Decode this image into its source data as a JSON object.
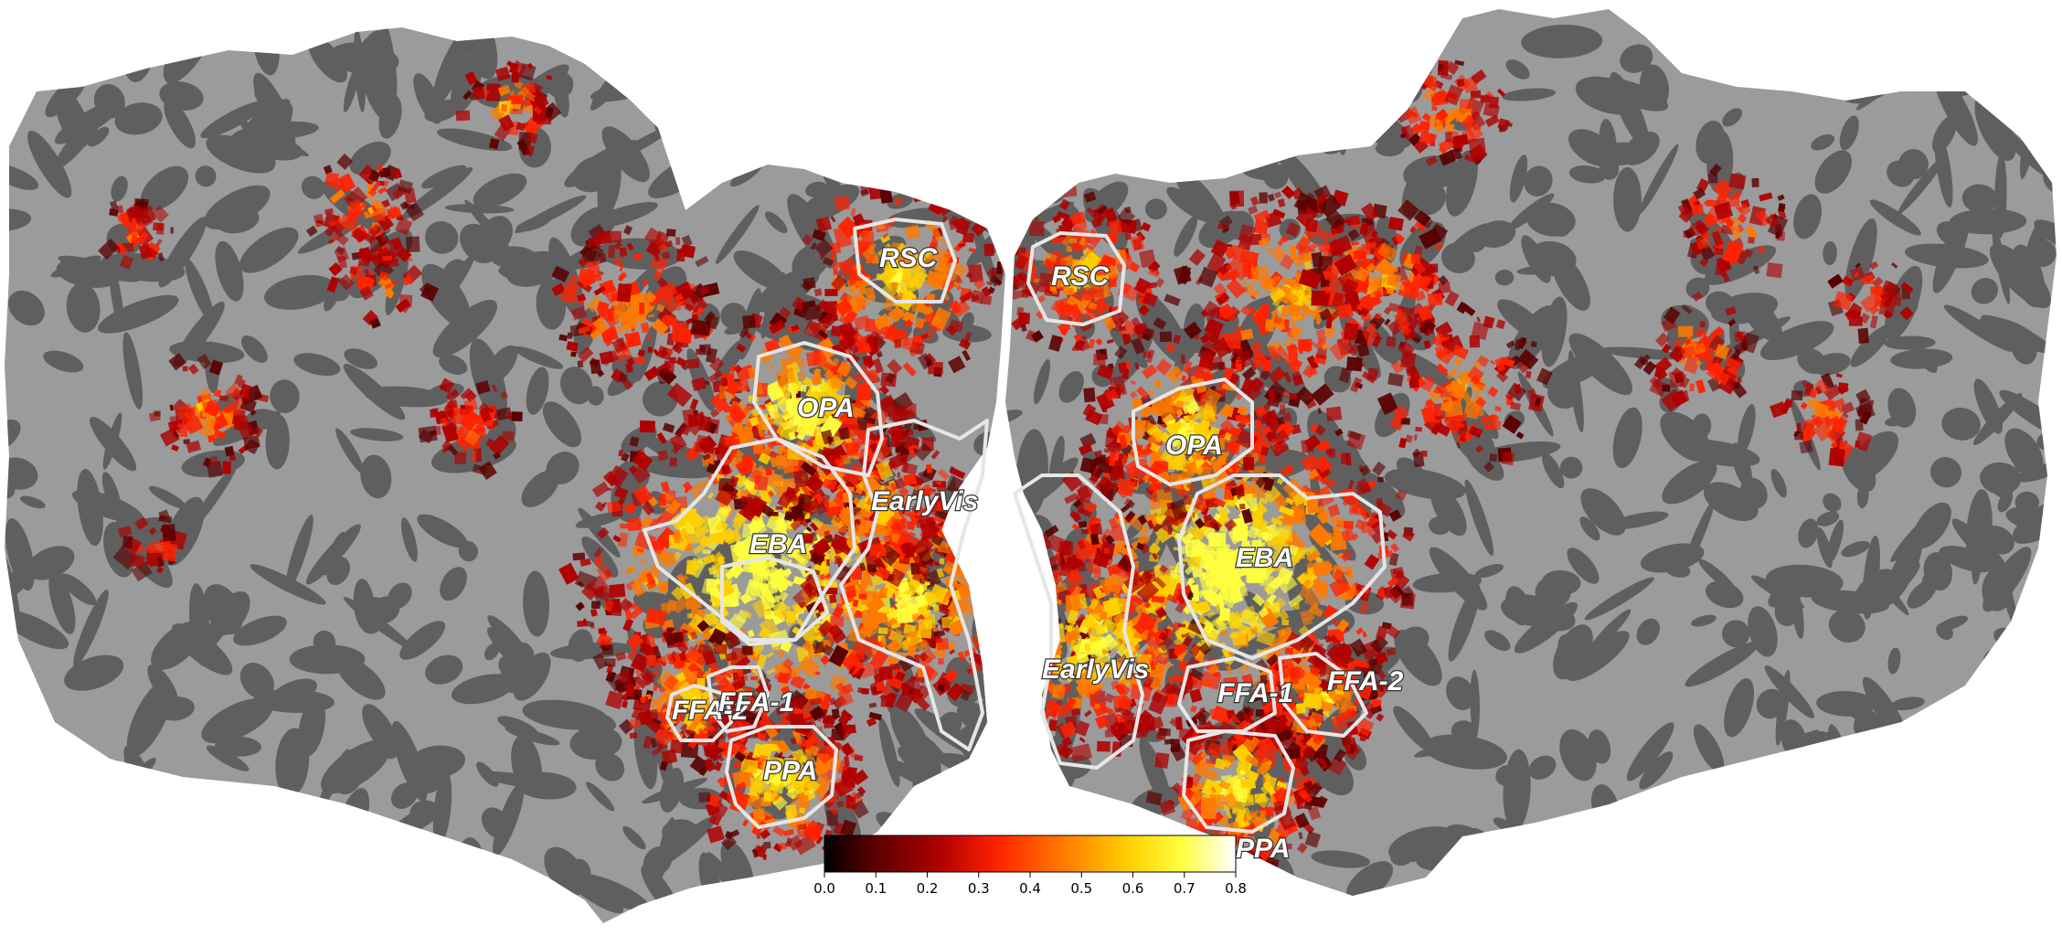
{
  "colors": {
    "background": "#ffffff",
    "gyri": "#9b9b9b",
    "sulci": "#5f5f5f",
    "roi_outline": "#e6e6e6",
    "colormap": [
      "#000000",
      "#5a0000",
      "#b00000",
      "#ff2200",
      "#ff7a00",
      "#ffd000",
      "#ffff40",
      "#ffffff"
    ]
  },
  "rois": {
    "left": [
      {
        "label": "RSC"
      },
      {
        "label": "OPA"
      },
      {
        "label": "EarlyVis"
      },
      {
        "label": "EBA"
      },
      {
        "label": "FFA-2"
      },
      {
        "label": "FFA-1"
      },
      {
        "label": "PPA"
      }
    ],
    "right": [
      {
        "label": "RSC"
      },
      {
        "label": "OPA"
      },
      {
        "label": "EBA"
      },
      {
        "label": "EarlyVis"
      },
      {
        "label": "FFA-1"
      },
      {
        "label": "FFA-2"
      },
      {
        "label": "PPA"
      }
    ]
  },
  "colorbar": {
    "min": 0.0,
    "max": 0.8,
    "ticks": [
      "0.0",
      "0.1",
      "0.2",
      "0.3",
      "0.4",
      "0.5",
      "0.6",
      "0.7",
      "0.8"
    ]
  }
}
